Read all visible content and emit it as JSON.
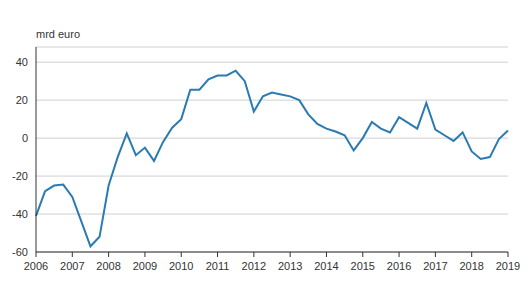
{
  "chart_data": {
    "type": "line",
    "y_label": "mrd euro",
    "categories": [
      "2006",
      null,
      null,
      null,
      "2007",
      null,
      null,
      null,
      "2008",
      null,
      null,
      null,
      "2009",
      null,
      null,
      null,
      "2010",
      null,
      null,
      null,
      "2011",
      null,
      null,
      null,
      "2012",
      null,
      null,
      null,
      "2013",
      null,
      null,
      null,
      "2014",
      null,
      null,
      null,
      "2015",
      null,
      null,
      null,
      "2016",
      null,
      null,
      null,
      "2017",
      null,
      null,
      null,
      "2018",
      null,
      null,
      null,
      "2019"
    ],
    "values": [
      -41,
      -28,
      -25,
      -24.5,
      -31,
      -44,
      -57,
      -52,
      -25,
      -10,
      2.5,
      -9,
      -5,
      -12,
      -2,
      5.5,
      10,
      25.5,
      25.5,
      31,
      33,
      33,
      35.5,
      30,
      14,
      22,
      24,
      23,
      22,
      20,
      12.5,
      7.5,
      5,
      3.5,
      1.5,
      -6.5,
      0,
      8.5,
      5,
      3,
      11,
      8,
      5,
      18.5,
      4.5,
      1.5,
      -1.5,
      3,
      -7,
      -11,
      -10,
      -0.5,
      4
    ],
    "color": "#2a7ab3",
    "ylim": [
      -60,
      48
    ],
    "yticks": [
      -60,
      -40,
      -20,
      0,
      20,
      40
    ],
    "grid": true
  }
}
